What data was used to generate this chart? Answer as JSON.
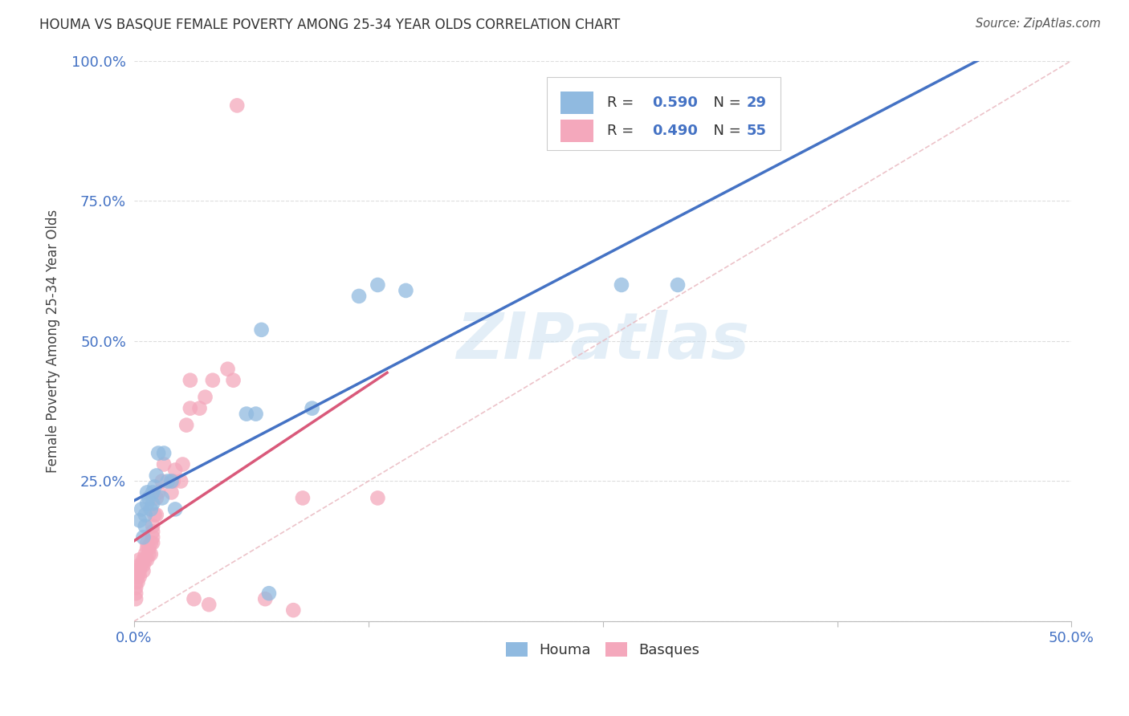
{
  "title": "HOUMA VS BASQUE FEMALE POVERTY AMONG 25-34 YEAR OLDS CORRELATION CHART",
  "source": "Source: ZipAtlas.com",
  "ylabel": "Female Poverty Among 25-34 Year Olds",
  "watermark": "ZIPatlas",
  "legend_blue_label": "Houma",
  "legend_pink_label": "Basques",
  "xlim": [
    0.0,
    0.5
  ],
  "ylim": [
    0.0,
    1.0
  ],
  "xticks": [
    0.0,
    0.125,
    0.25,
    0.375,
    0.5
  ],
  "xtick_labels": [
    "0.0%",
    "",
    "",
    "",
    "50.0%"
  ],
  "yticks": [
    0.0,
    0.25,
    0.5,
    0.75,
    1.0
  ],
  "ytick_labels": [
    "",
    "25.0%",
    "50.0%",
    "75.0%",
    "100.0%"
  ],
  "blue_color": "#90BAE0",
  "pink_color": "#F4A8BC",
  "blue_line_color": "#4472C4",
  "pink_line_color": "#D9597A",
  "ref_line_color": "#E8B4BC",
  "background_color": "#FFFFFF",
  "grid_color": "#DDDDDD",
  "houma_x": [
    0.003,
    0.004,
    0.005,
    0.006,
    0.006,
    0.007,
    0.007,
    0.008,
    0.009,
    0.01,
    0.01,
    0.011,
    0.012,
    0.013,
    0.015,
    0.016,
    0.018,
    0.02,
    0.022,
    0.06,
    0.065,
    0.13,
    0.145,
    0.26,
    0.29,
    0.068,
    0.072,
    0.12,
    0.095
  ],
  "houma_y": [
    0.18,
    0.2,
    0.15,
    0.17,
    0.19,
    0.21,
    0.23,
    0.22,
    0.2,
    0.23,
    0.21,
    0.24,
    0.26,
    0.3,
    0.22,
    0.3,
    0.25,
    0.25,
    0.2,
    0.37,
    0.37,
    0.6,
    0.59,
    0.6,
    0.6,
    0.52,
    0.05,
    0.58,
    0.38
  ],
  "basque_x": [
    0.001,
    0.001,
    0.001,
    0.001,
    0.001,
    0.002,
    0.002,
    0.002,
    0.003,
    0.003,
    0.003,
    0.003,
    0.004,
    0.005,
    0.005,
    0.005,
    0.006,
    0.006,
    0.007,
    0.007,
    0.007,
    0.008,
    0.008,
    0.009,
    0.009,
    0.01,
    0.01,
    0.01,
    0.01,
    0.011,
    0.012,
    0.012,
    0.013,
    0.015,
    0.016,
    0.02,
    0.021,
    0.022,
    0.025,
    0.026,
    0.028,
    0.03,
    0.03,
    0.032,
    0.035,
    0.038,
    0.04,
    0.042,
    0.05,
    0.053,
    0.055,
    0.07,
    0.085,
    0.09,
    0.13
  ],
  "basque_y": [
    0.04,
    0.05,
    0.06,
    0.07,
    0.08,
    0.07,
    0.08,
    0.09,
    0.08,
    0.09,
    0.1,
    0.11,
    0.1,
    0.09,
    0.1,
    0.11,
    0.11,
    0.12,
    0.11,
    0.13,
    0.14,
    0.12,
    0.13,
    0.12,
    0.14,
    0.14,
    0.15,
    0.16,
    0.17,
    0.19,
    0.19,
    0.22,
    0.23,
    0.25,
    0.28,
    0.23,
    0.25,
    0.27,
    0.25,
    0.28,
    0.35,
    0.38,
    0.43,
    0.04,
    0.38,
    0.4,
    0.03,
    0.43,
    0.45,
    0.43,
    0.92,
    0.04,
    0.02,
    0.22,
    0.22
  ],
  "blue_R": "0.590",
  "blue_N": "29",
  "pink_R": "0.490",
  "pink_N": "55",
  "accent_color": "#4472C4",
  "label_color": "#555555"
}
